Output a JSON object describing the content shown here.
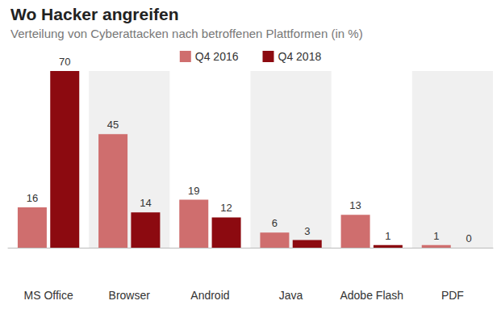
{
  "chart_data": {
    "type": "bar",
    "title": "Wo Hacker angreifen",
    "subtitle": "Verteilung von Cyberattacken nach betroffenen Plattformen (in %)",
    "categories": [
      "MS Office",
      "Browser",
      "Android",
      "Java",
      "Adobe Flash",
      "PDF"
    ],
    "series": [
      {
        "name": "Q4 2016",
        "color": "#cf6e6e",
        "values": [
          16,
          45,
          19,
          6,
          13,
          1
        ]
      },
      {
        "name": "Q4 2018",
        "color": "#8c0a10",
        "values": [
          70,
          14,
          12,
          3,
          1,
          0
        ]
      }
    ],
    "ylim": [
      0,
      70
    ],
    "yticks": [],
    "grid": false,
    "legend": "top",
    "data_labels": true,
    "tick_labels": "x"
  }
}
